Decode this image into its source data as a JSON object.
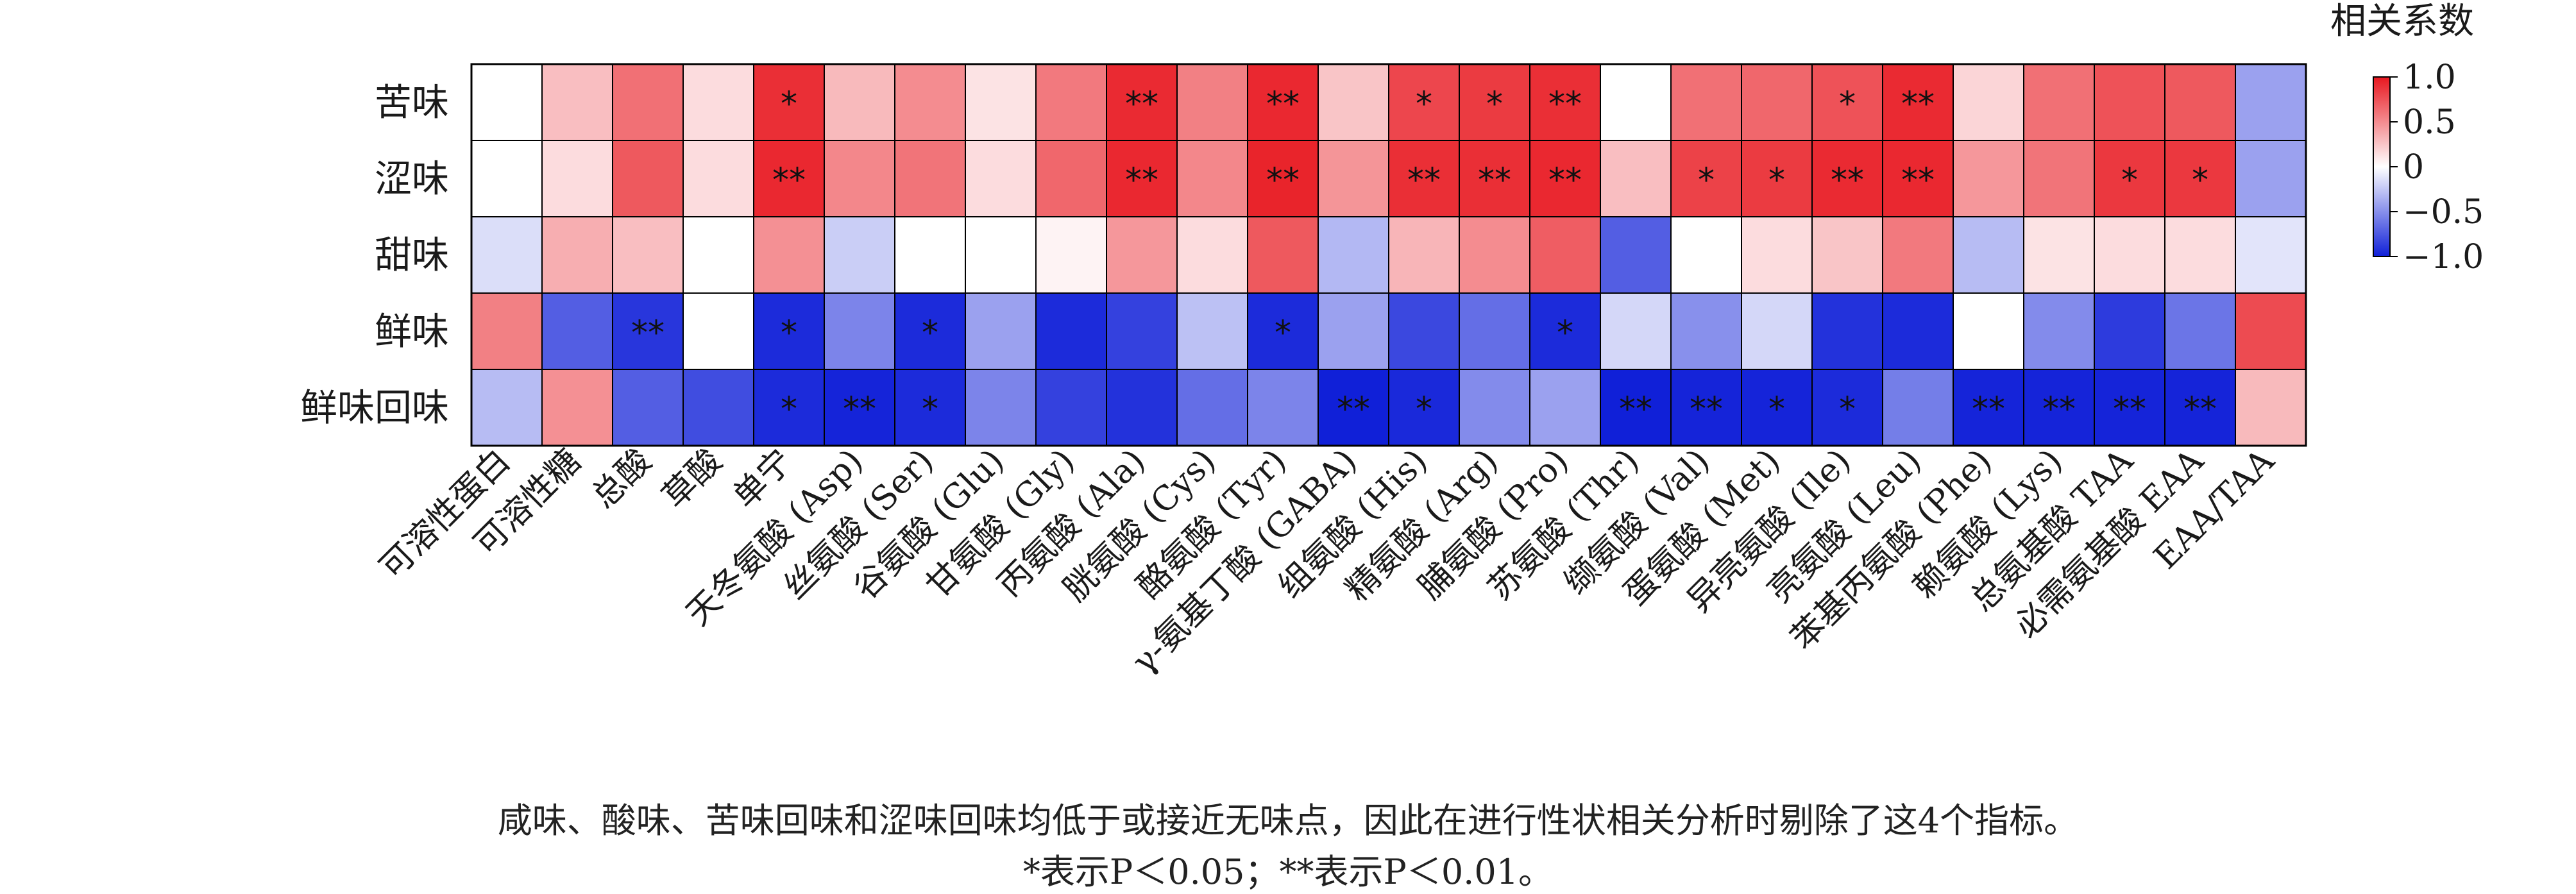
{
  "chart_data": {
    "type": "heatmap",
    "rows": [
      "苦味",
      "涩味",
      "甜味",
      "鲜味",
      "鲜味回味"
    ],
    "columns": [
      "可溶性蛋白",
      "可溶性糖",
      "总酸",
      "草酸",
      "单宁",
      "天冬氨酸 (Asp)",
      "丝氨酸 (Ser)",
      "谷氨酸 (Glu)",
      "甘氨酸 (Gly)",
      "丙氨酸 (Ala)",
      "胱氨酸 (Cys)",
      "酪氨酸 (Tyr)",
      "γ-氨基丁酸 (GABA)",
      "组氨酸 (His)",
      "精氨酸 (Arg)",
      "脯氨酸 (Pro)",
      "苏氨酸 (Thr)",
      "缬氨酸 (Val)",
      "蛋氨酸 (Met)",
      "异亮氨酸 (Ile)",
      "亮氨酸 (Leu)",
      "苯基丙氨酸 (Phe)",
      "赖氨酸 (Lys)",
      "总氨基酸 TAA",
      "必需氨基酸 EAA",
      "EAA/TAA"
    ],
    "values": [
      [
        0.0,
        0.28,
        0.62,
        0.15,
        0.9,
        0.3,
        0.5,
        0.12,
        0.58,
        0.92,
        0.55,
        0.93,
        0.25,
        0.8,
        0.85,
        0.9,
        0.0,
        0.62,
        0.66,
        0.75,
        0.92,
        0.18,
        0.62,
        0.75,
        0.72,
        -0.42
      ],
      [
        0.0,
        0.15,
        0.72,
        0.15,
        0.93,
        0.52,
        0.6,
        0.15,
        0.66,
        0.93,
        0.52,
        0.95,
        0.46,
        0.9,
        0.9,
        0.93,
        0.28,
        0.82,
        0.85,
        0.92,
        0.93,
        0.45,
        0.6,
        0.86,
        0.86,
        -0.42
      ],
      [
        -0.15,
        0.35,
        0.28,
        0.0,
        0.48,
        -0.22,
        0.0,
        0.0,
        0.05,
        0.45,
        0.15,
        0.72,
        -0.32,
        0.32,
        0.5,
        0.7,
        -0.72,
        0.0,
        0.15,
        0.25,
        0.58,
        -0.3,
        0.12,
        0.15,
        0.15,
        -0.12
      ],
      [
        0.55,
        -0.72,
        -0.9,
        0.0,
        -0.95,
        -0.55,
        -0.95,
        -0.42,
        -0.95,
        -0.85,
        -0.28,
        -0.95,
        -0.42,
        -0.82,
        -0.65,
        -0.95,
        -0.18,
        -0.5,
        -0.18,
        -0.92,
        -0.95,
        0.0,
        -0.52,
        -0.88,
        -0.62,
        0.78
      ],
      [
        -0.3,
        0.48,
        -0.72,
        -0.8,
        -0.95,
        -0.98,
        -0.95,
        -0.55,
        -0.85,
        -0.92,
        -0.65,
        -0.55,
        -1.0,
        -0.96,
        -0.52,
        -0.42,
        -1.0,
        -0.98,
        -0.98,
        -0.95,
        -0.58,
        -0.98,
        -0.98,
        -0.98,
        -0.98,
        0.3
      ]
    ],
    "significance": [
      [
        "",
        "",
        "",
        "",
        "*",
        "",
        "",
        "",
        "",
        "**",
        "",
        "**",
        "",
        "*",
        "*",
        "**",
        "",
        "",
        "",
        "*",
        "**",
        "",
        "",
        "",
        "",
        ""
      ],
      [
        "",
        "",
        "",
        "",
        "**",
        "",
        "",
        "",
        "",
        "**",
        "",
        "**",
        "",
        "**",
        "**",
        "**",
        "",
        "*",
        "*",
        "**",
        "**",
        "",
        "",
        "*",
        "*",
        ""
      ],
      [
        "",
        "",
        "",
        "",
        "",
        "",
        "",
        "",
        "",
        "",
        "",
        "",
        "",
        "",
        "",
        "",
        "",
        "",
        "",
        "",
        "",
        "",
        "",
        "",
        "",
        ""
      ],
      [
        "",
        "",
        "**",
        "",
        "*",
        "",
        "*",
        "",
        "",
        "",
        "",
        "*",
        "",
        "",
        "",
        "*",
        "",
        "",
        "",
        "",
        "",
        "",
        "",
        "",
        "",
        ""
      ],
      [
        "",
        "",
        "",
        "",
        "*",
        "**",
        "*",
        "",
        "",
        "",
        "",
        "",
        "**",
        "*",
        "",
        "",
        "**",
        "**",
        "*",
        "*",
        "",
        "**",
        "**",
        "**",
        "**",
        ""
      ]
    ],
    "colorbar": {
      "title": "相关系数",
      "ticks": [
        "1.0",
        "0.5",
        "0",
        "−0.5",
        "−1.0"
      ],
      "tick_values": [
        1.0,
        0.5,
        0.0,
        -0.5,
        -1.0
      ],
      "range": [
        -1.0,
        1.0
      ],
      "colors": {
        "high": "#e81820",
        "mid": "#ffffff",
        "low": "#1020d8"
      }
    }
  },
  "footnote": {
    "line1": "咸味、酸味、苦味回味和涩味回味均低于或接近无味点，因此在进行性状相关分析时剔除了这4个指标。",
    "line2": "*表示P＜0.05；**表示P＜0.01。"
  }
}
